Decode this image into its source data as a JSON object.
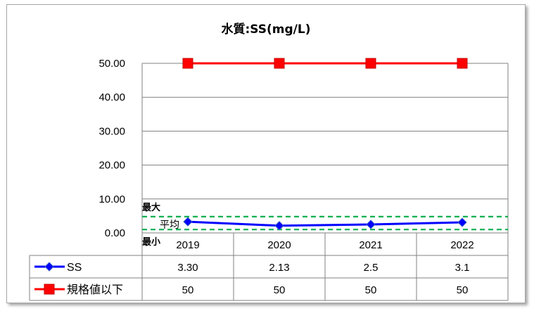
{
  "chart_data": {
    "type": "line",
    "title": "水質:SS(mg/L)",
    "categories": [
      "2019",
      "2020",
      "2021",
      "2022"
    ],
    "ylim": [
      0,
      50
    ],
    "yticks": [
      "50.00",
      "40.00",
      "30.00",
      "20.00",
      "10.00",
      "0.00"
    ],
    "grid": true,
    "legend": "data-table-left",
    "series": [
      {
        "name": "SS",
        "values": [
          3.3,
          2.13,
          2.5,
          3.1
        ],
        "labels": [
          "3.30",
          "2.13",
          "2.5",
          "3.1"
        ],
        "color": "#0000ff",
        "marker": "diamond"
      },
      {
        "name": "規格値以下",
        "values": [
          50,
          50,
          50,
          50
        ],
        "labels": [
          "50",
          "50",
          "50",
          "50"
        ],
        "color": "#ff0000",
        "marker": "square"
      }
    ],
    "bands": {
      "max_label": "最大",
      "avg_label": "平均",
      "min_label": "最小",
      "max_value": 4.8,
      "min_value": 1.0,
      "color": "#00b050"
    }
  }
}
